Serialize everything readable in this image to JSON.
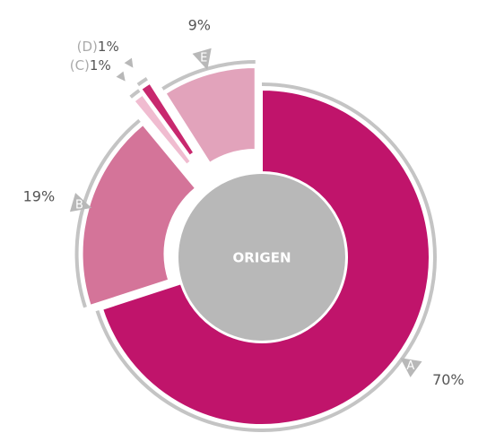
{
  "chart_data": {
    "type": "donut",
    "center_label": "ORIGEN",
    "categories": [
      "A",
      "B",
      "(C)",
      "(D)",
      "E"
    ],
    "values": [
      70,
      19,
      1,
      1,
      9
    ],
    "value_labels": [
      "70%",
      "19%",
      "1%",
      "1%",
      "9%"
    ],
    "colors": [
      "#c0146b",
      "#d47499",
      "#f0bcd0",
      "#c8286e",
      "#e2a3bb"
    ]
  }
}
